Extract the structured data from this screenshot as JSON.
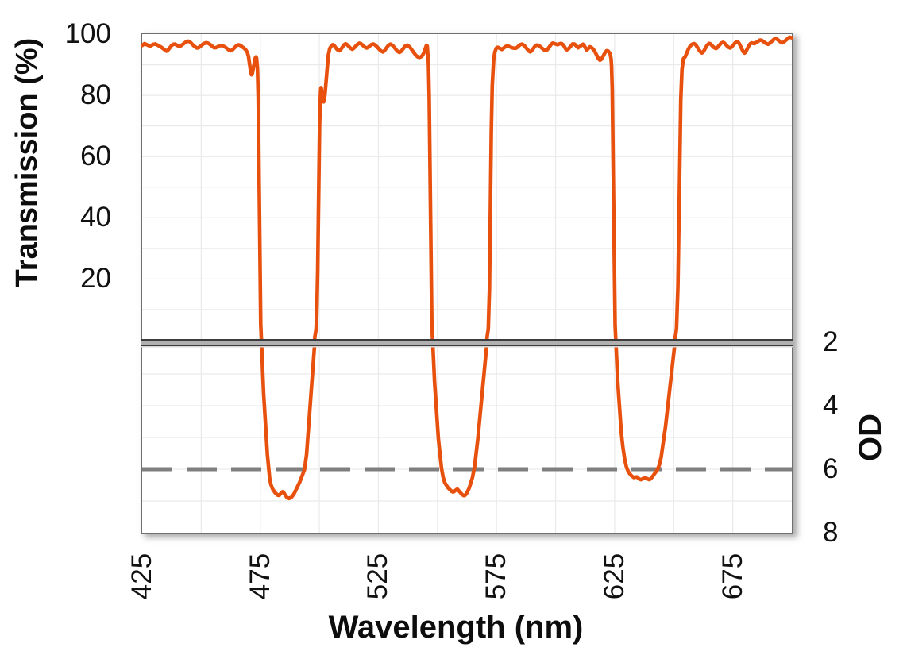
{
  "chart_data": {
    "type": "line",
    "title": "",
    "xlabel": "Wavelength (nm)",
    "ylabel_left": "Transmission (%)",
    "ylabel_right": "OD",
    "x_range_nm": [
      425,
      700
    ],
    "x_tick_labels": [
      425,
      475,
      525,
      575,
      625,
      675
    ],
    "x_gridline_step_nm": 25,
    "transmission_axis_range_pct": [
      0,
      100
    ],
    "transmission_tick_labels": [
      100,
      80,
      60,
      40,
      20
    ],
    "transmission_gridline_step_pct": 10,
    "od_axis_range": [
      2,
      8
    ],
    "od_tick_labels": [
      2,
      4,
      6,
      8
    ],
    "od_gridline_step": 1,
    "dashed_reference_od": 6,
    "axis_break_between": "transmission 0% and OD 2",
    "grid": "on",
    "legend": "none",
    "series": [
      {
        "name": "filter transmission spectrum",
        "color": "#e8500e",
        "points_nm_pct": [
          [
            425.0,
            96.3
          ],
          [
            426.0,
            96.9
          ],
          [
            428.3,
            96.05
          ],
          [
            429.7,
            96.66
          ],
          [
            430.6,
            96.78
          ],
          [
            433.1,
            95.72
          ],
          [
            435.3,
            94.44
          ],
          [
            435.8,
            94.64
          ],
          [
            437.4,
            96.23
          ],
          [
            438.1,
            96.66
          ],
          [
            438.9,
            96.75
          ],
          [
            440.2,
            96.17
          ],
          [
            441.1,
            96.02
          ],
          [
            443.4,
            97.36
          ],
          [
            444.5,
            97.69
          ],
          [
            445.2,
            97.48
          ],
          [
            447.2,
            95.95
          ],
          [
            448.2,
            95.46
          ],
          [
            448.9,
            95.56
          ],
          [
            451.0,
            96.86
          ],
          [
            452.2,
            97.21
          ],
          [
            453.2,
            96.93
          ],
          [
            455.5,
            95.54
          ],
          [
            456.3,
            95.58
          ],
          [
            457.9,
            96.27
          ],
          [
            458.6,
            96.29
          ],
          [
            460.0,
            95.86
          ],
          [
            461.7,
            94.81
          ],
          [
            462.4,
            94.55
          ],
          [
            463.2,
            94.84
          ],
          [
            464.9,
            96.21
          ],
          [
            465.5,
            96.46
          ],
          [
            466.0,
            96.46
          ],
          [
            467.0,
            96.08
          ],
          [
            468.2,
            95.37
          ],
          [
            468.9,
            94.81
          ],
          [
            469.5,
            94.03
          ],
          [
            470.0,
            92.7
          ],
          [
            470.9,
            87.93
          ],
          [
            471.3,
            86.73
          ],
          [
            471.5,
            86.84
          ],
          [
            471.7,
            87.37
          ],
          [
            472.8,
            92.01
          ],
          [
            473.1,
            92.55
          ],
          [
            473.4,
            92.26
          ],
          [
            473.8,
            88.68
          ],
          [
            474.1,
            79.57
          ],
          [
            475.2,
            5.24
          ],
          [
            476.4,
            0.0251
          ],
          [
            478.0,
            0.000286
          ],
          [
            479.0,
            5.02e-05
          ],
          [
            479.5,
            3.32e-05
          ],
          [
            480.2,
            2.41e-05
          ],
          [
            481.2,
            1.85e-05
          ],
          [
            482.4,
            1.52e-05
          ],
          [
            483.0,
            1.5e-05
          ],
          [
            484.0,
            1.86e-05
          ],
          [
            484.5,
            1.96e-05
          ],
          [
            484.9,
            1.85e-05
          ],
          [
            486.2,
            1.31e-05
          ],
          [
            487.2,
            1.2e-05
          ],
          [
            488.2,
            1.32e-05
          ],
          [
            489.2,
            1.64e-05
          ],
          [
            491.7,
            3.93e-05
          ],
          [
            493.7,
            9.74e-05
          ],
          [
            494.6,
            0.000289
          ],
          [
            498.0,
            0.813
          ],
          [
            498.1,
            1.0
          ],
          [
            498.6,
            3.41
          ],
          [
            498.9,
            7.96
          ],
          [
            499.3,
            22.43
          ],
          [
            500.1,
            70.22
          ],
          [
            500.5,
            81.35
          ],
          [
            500.6,
            82.2
          ],
          [
            500.7,
            82.51
          ],
          [
            500.8,
            82.42
          ],
          [
            501.6,
            78.24
          ],
          [
            501.8,
            77.88
          ],
          [
            502.0,
            78.12
          ],
          [
            502.4,
            80.36
          ],
          [
            503.8,
            93.16
          ],
          [
            504.4,
            95.34
          ],
          [
            505.2,
            96.31
          ],
          [
            505.7,
            96.56
          ],
          [
            506.1,
            96.47
          ],
          [
            507.5,
            94.99
          ],
          [
            508.4,
            94.57
          ],
          [
            509.0,
            94.88
          ],
          [
            510.4,
            96.48
          ],
          [
            511.1,
            96.83
          ],
          [
            511.6,
            96.68
          ],
          [
            513.1,
            95.45
          ],
          [
            513.9,
            95.08
          ],
          [
            514.4,
            95.25
          ],
          [
            516.1,
            96.63
          ],
          [
            516.9,
            97.04
          ],
          [
            517.6,
            96.89
          ],
          [
            519.4,
            95.67
          ],
          [
            520.0,
            95.47
          ],
          [
            520.5,
            95.61
          ],
          [
            522.1,
            96.59
          ],
          [
            522.9,
            96.78
          ],
          [
            523.7,
            96.4
          ],
          [
            526.0,
            94.54
          ],
          [
            526.9,
            94.19
          ],
          [
            527.5,
            94.52
          ],
          [
            529.3,
            96.39
          ],
          [
            530.1,
            96.74
          ],
          [
            531.0,
            96.33
          ],
          [
            533.0,
            94.45
          ],
          [
            533.9,
            94.0
          ],
          [
            534.6,
            94.35
          ],
          [
            536.4,
            96.16
          ],
          [
            537.2,
            96.43
          ],
          [
            538.3,
            95.78
          ],
          [
            540.9,
            93.05
          ],
          [
            541.7,
            92.56
          ],
          [
            542.3,
            92.41
          ],
          [
            543.0,
            92.59
          ],
          [
            543.6,
            93.0
          ],
          [
            544.2,
            93.83
          ],
          [
            545.3,
            96.25
          ],
          [
            545.5,
            96.35
          ],
          [
            545.7,
            96.0
          ],
          [
            546.2,
            90.42
          ],
          [
            546.5,
            79.63
          ],
          [
            547.6,
            5.73
          ],
          [
            548.8,
            0.0547
          ],
          [
            550.4,
            0.000892
          ],
          [
            551.7,
            0.000108
          ],
          [
            552.4,
            5.53e-05
          ],
          [
            553.1,
            3.79e-05
          ],
          [
            554.4,
            2.64e-05
          ],
          [
            556.0,
            2.02e-05
          ],
          [
            556.5,
            1.93e-05
          ],
          [
            556.9,
            1.94e-05
          ],
          [
            558.1,
            2.31e-05
          ],
          [
            558.5,
            2.35e-05
          ],
          [
            560.4,
            1.59e-05
          ],
          [
            561.2,
            1.47e-05
          ],
          [
            561.8,
            1.54e-05
          ],
          [
            562.3,
            1.71e-05
          ],
          [
            563.5,
            2.64e-05
          ],
          [
            564.8,
            5.39e-05
          ],
          [
            565.7,
            0.000117
          ],
          [
            567.1,
            0.000928
          ],
          [
            570.9,
            0.877
          ],
          [
            571.0,
            1.06
          ],
          [
            571.5,
            3.59
          ],
          [
            572.0,
            16.81
          ],
          [
            572.8,
            68.39
          ],
          [
            573.2,
            83.25
          ],
          [
            573.8,
            91.75
          ],
          [
            574.3,
            94.18
          ],
          [
            574.9,
            95.41
          ],
          [
            575.2,
            95.63
          ],
          [
            575.6,
            95.66
          ],
          [
            577.3,
            95.0
          ],
          [
            578.8,
            95.92
          ],
          [
            579.6,
            96.18
          ],
          [
            581.9,
            95.46
          ],
          [
            583.0,
            95.36
          ],
          [
            583.5,
            95.52
          ],
          [
            585.0,
            96.54
          ],
          [
            585.8,
            96.75
          ],
          [
            586.7,
            96.31
          ],
          [
            588.7,
            94.46
          ],
          [
            589.3,
            94.19
          ],
          [
            589.7,
            94.41
          ],
          [
            591.4,
            96.16
          ],
          [
            592.0,
            96.43
          ],
          [
            592.9,
            96.31
          ],
          [
            595.0,
            94.92
          ],
          [
            595.9,
            94.67
          ],
          [
            596.5,
            94.91
          ],
          [
            598.2,
            96.74
          ],
          [
            598.8,
            97.07
          ],
          [
            600.9,
            96.54
          ],
          [
            602.1,
            96.94
          ],
          [
            602.6,
            96.88
          ],
          [
            603.3,
            96.45
          ],
          [
            604.3,
            95.15
          ],
          [
            604.8,
            94.87
          ],
          [
            605.6,
            95.3
          ],
          [
            607.2,
            96.8
          ],
          [
            608.1,
            96.7
          ],
          [
            609.5,
            95.55
          ],
          [
            611.6,
            96.68
          ],
          [
            612.0,
            96.43
          ],
          [
            613.1,
            94.85
          ],
          [
            613.4,
            94.91
          ],
          [
            614.5,
            95.86
          ],
          [
            614.9,
            95.78
          ],
          [
            615.6,
            95.36
          ],
          [
            616.5,
            94.52
          ],
          [
            618.1,
            92.03
          ],
          [
            618.7,
            91.52
          ],
          [
            619.0,
            91.54
          ],
          [
            619.4,
            91.84
          ],
          [
            621.0,
            94.04
          ],
          [
            621.6,
            94.58
          ],
          [
            622.3,
            94.46
          ],
          [
            623.1,
            93.53
          ],
          [
            623.5,
            91.97
          ],
          [
            623.7,
            89.79
          ],
          [
            624.0,
            81.92
          ],
          [
            625.2,
            4.91
          ],
          [
            626.3,
            0.0576
          ],
          [
            627.8,
            0.0015
          ],
          [
            628.5,
            0.000492
          ],
          [
            629.3,
            0.000197
          ],
          [
            630.0,
            0.000116
          ],
          [
            630.8,
            8.33e-05
          ],
          [
            632.0,
            6.35e-05
          ],
          [
            633.1,
            5.49e-05
          ],
          [
            634.4,
            5.71e-05
          ],
          [
            635.5,
            4.88e-05
          ],
          [
            636.1,
            4.7e-05
          ],
          [
            637.9,
            5.41e-05
          ],
          [
            639.6,
            4.71e-05
          ],
          [
            640.1,
            4.89e-05
          ],
          [
            640.8,
            5.52e-05
          ],
          [
            643.2,
            9.91e-05
          ],
          [
            644.0,
            0.000141
          ],
          [
            644.7,
            0.000242
          ],
          [
            646.5,
            0.00215
          ],
          [
            650.5,
            0.943
          ],
          [
            650.6,
            1.1
          ],
          [
            650.9,
            1.89
          ],
          [
            651.2,
            3.78
          ],
          [
            651.8,
            17.61
          ],
          [
            653.0,
            78.66
          ],
          [
            653.5,
            88.4
          ],
          [
            654.1,
            91.99
          ],
          [
            654.9,
            92.6
          ],
          [
            656.1,
            94.92
          ],
          [
            656.8,
            95.91
          ],
          [
            657.6,
            96.6
          ],
          [
            658.3,
            96.87
          ],
          [
            658.8,
            96.84
          ],
          [
            659.3,
            96.56
          ],
          [
            661.1,
            94.39
          ],
          [
            661.9,
            93.86
          ],
          [
            662.5,
            94.18
          ],
          [
            664.1,
            96.32
          ],
          [
            664.9,
            96.96
          ],
          [
            665.5,
            96.83
          ],
          [
            667.1,
            95.59
          ],
          [
            667.9,
            95.29
          ],
          [
            668.4,
            95.53
          ],
          [
            670.0,
            97.02
          ],
          [
            670.9,
            97.34
          ],
          [
            671.4,
            97.11
          ],
          [
            673.0,
            95.77
          ],
          [
            673.9,
            95.46
          ],
          [
            674.5,
            95.77
          ],
          [
            676.1,
            97.2
          ],
          [
            676.9,
            97.51
          ],
          [
            677.3,
            97.34
          ],
          [
            677.8,
            96.84
          ],
          [
            679.4,
            94.26
          ],
          [
            680.0,
            93.8
          ],
          [
            680.5,
            94.18
          ],
          [
            681.8,
            96.2
          ],
          [
            682.5,
            96.92
          ],
          [
            683.0,
            97.12
          ],
          [
            684.2,
            96.89
          ],
          [
            686.5,
            98.03
          ],
          [
            687.2,
            98.0
          ],
          [
            689.1,
            96.95
          ],
          [
            689.9,
            96.67
          ],
          [
            690.4,
            96.85
          ],
          [
            692.9,
            98.61
          ],
          [
            693.4,
            98.53
          ],
          [
            695.5,
            97.31
          ],
          [
            696.0,
            97.18
          ],
          [
            696.5,
            97.37
          ],
          [
            699.0,
            99.0
          ],
          [
            700.0,
            98.8
          ]
        ]
      }
    ],
    "colors": {
      "curve": "#e8500e",
      "dashed_line": "#7f7f7f",
      "gridline": "#eaeaea",
      "frame": "#6f6f6f",
      "break_line_dark": "#3c3c3c",
      "break_line_mid": "#b0b0b0",
      "break_line_light": "#d9d9d9",
      "text": "#111111",
      "background": "#ffffff"
    }
  }
}
